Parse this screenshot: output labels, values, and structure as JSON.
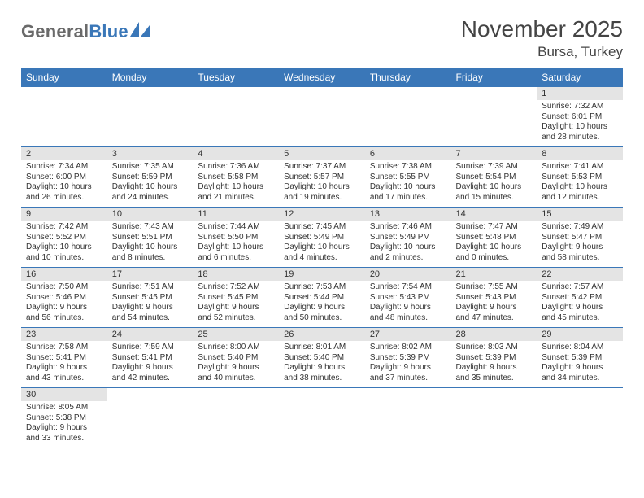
{
  "logo": {
    "general": "General",
    "blue": "Blue"
  },
  "title": "November 2025",
  "location": "Bursa, Turkey",
  "colors": {
    "header_bg": "#3a77b8",
    "header_fg": "#ffffff",
    "daynum_bg": "#e4e4e4",
    "border": "#3a77b8",
    "text": "#333333",
    "logo_general": "#6a6a6a",
    "logo_blue": "#3a77b8"
  },
  "weekdays": [
    "Sunday",
    "Monday",
    "Tuesday",
    "Wednesday",
    "Thursday",
    "Friday",
    "Saturday"
  ],
  "weeks": [
    [
      null,
      null,
      null,
      null,
      null,
      null,
      {
        "n": "1",
        "sr": "Sunrise: 7:32 AM",
        "ss": "Sunset: 6:01 PM",
        "dl1": "Daylight: 10 hours",
        "dl2": "and 28 minutes."
      }
    ],
    [
      {
        "n": "2",
        "sr": "Sunrise: 7:34 AM",
        "ss": "Sunset: 6:00 PM",
        "dl1": "Daylight: 10 hours",
        "dl2": "and 26 minutes."
      },
      {
        "n": "3",
        "sr": "Sunrise: 7:35 AM",
        "ss": "Sunset: 5:59 PM",
        "dl1": "Daylight: 10 hours",
        "dl2": "and 24 minutes."
      },
      {
        "n": "4",
        "sr": "Sunrise: 7:36 AM",
        "ss": "Sunset: 5:58 PM",
        "dl1": "Daylight: 10 hours",
        "dl2": "and 21 minutes."
      },
      {
        "n": "5",
        "sr": "Sunrise: 7:37 AM",
        "ss": "Sunset: 5:57 PM",
        "dl1": "Daylight: 10 hours",
        "dl2": "and 19 minutes."
      },
      {
        "n": "6",
        "sr": "Sunrise: 7:38 AM",
        "ss": "Sunset: 5:55 PM",
        "dl1": "Daylight: 10 hours",
        "dl2": "and 17 minutes."
      },
      {
        "n": "7",
        "sr": "Sunrise: 7:39 AM",
        "ss": "Sunset: 5:54 PM",
        "dl1": "Daylight: 10 hours",
        "dl2": "and 15 minutes."
      },
      {
        "n": "8",
        "sr": "Sunrise: 7:41 AM",
        "ss": "Sunset: 5:53 PM",
        "dl1": "Daylight: 10 hours",
        "dl2": "and 12 minutes."
      }
    ],
    [
      {
        "n": "9",
        "sr": "Sunrise: 7:42 AM",
        "ss": "Sunset: 5:52 PM",
        "dl1": "Daylight: 10 hours",
        "dl2": "and 10 minutes."
      },
      {
        "n": "10",
        "sr": "Sunrise: 7:43 AM",
        "ss": "Sunset: 5:51 PM",
        "dl1": "Daylight: 10 hours",
        "dl2": "and 8 minutes."
      },
      {
        "n": "11",
        "sr": "Sunrise: 7:44 AM",
        "ss": "Sunset: 5:50 PM",
        "dl1": "Daylight: 10 hours",
        "dl2": "and 6 minutes."
      },
      {
        "n": "12",
        "sr": "Sunrise: 7:45 AM",
        "ss": "Sunset: 5:49 PM",
        "dl1": "Daylight: 10 hours",
        "dl2": "and 4 minutes."
      },
      {
        "n": "13",
        "sr": "Sunrise: 7:46 AM",
        "ss": "Sunset: 5:49 PM",
        "dl1": "Daylight: 10 hours",
        "dl2": "and 2 minutes."
      },
      {
        "n": "14",
        "sr": "Sunrise: 7:47 AM",
        "ss": "Sunset: 5:48 PM",
        "dl1": "Daylight: 10 hours",
        "dl2": "and 0 minutes."
      },
      {
        "n": "15",
        "sr": "Sunrise: 7:49 AM",
        "ss": "Sunset: 5:47 PM",
        "dl1": "Daylight: 9 hours",
        "dl2": "and 58 minutes."
      }
    ],
    [
      {
        "n": "16",
        "sr": "Sunrise: 7:50 AM",
        "ss": "Sunset: 5:46 PM",
        "dl1": "Daylight: 9 hours",
        "dl2": "and 56 minutes."
      },
      {
        "n": "17",
        "sr": "Sunrise: 7:51 AM",
        "ss": "Sunset: 5:45 PM",
        "dl1": "Daylight: 9 hours",
        "dl2": "and 54 minutes."
      },
      {
        "n": "18",
        "sr": "Sunrise: 7:52 AM",
        "ss": "Sunset: 5:45 PM",
        "dl1": "Daylight: 9 hours",
        "dl2": "and 52 minutes."
      },
      {
        "n": "19",
        "sr": "Sunrise: 7:53 AM",
        "ss": "Sunset: 5:44 PM",
        "dl1": "Daylight: 9 hours",
        "dl2": "and 50 minutes."
      },
      {
        "n": "20",
        "sr": "Sunrise: 7:54 AM",
        "ss": "Sunset: 5:43 PM",
        "dl1": "Daylight: 9 hours",
        "dl2": "and 48 minutes."
      },
      {
        "n": "21",
        "sr": "Sunrise: 7:55 AM",
        "ss": "Sunset: 5:43 PM",
        "dl1": "Daylight: 9 hours",
        "dl2": "and 47 minutes."
      },
      {
        "n": "22",
        "sr": "Sunrise: 7:57 AM",
        "ss": "Sunset: 5:42 PM",
        "dl1": "Daylight: 9 hours",
        "dl2": "and 45 minutes."
      }
    ],
    [
      {
        "n": "23",
        "sr": "Sunrise: 7:58 AM",
        "ss": "Sunset: 5:41 PM",
        "dl1": "Daylight: 9 hours",
        "dl2": "and 43 minutes."
      },
      {
        "n": "24",
        "sr": "Sunrise: 7:59 AM",
        "ss": "Sunset: 5:41 PM",
        "dl1": "Daylight: 9 hours",
        "dl2": "and 42 minutes."
      },
      {
        "n": "25",
        "sr": "Sunrise: 8:00 AM",
        "ss": "Sunset: 5:40 PM",
        "dl1": "Daylight: 9 hours",
        "dl2": "and 40 minutes."
      },
      {
        "n": "26",
        "sr": "Sunrise: 8:01 AM",
        "ss": "Sunset: 5:40 PM",
        "dl1": "Daylight: 9 hours",
        "dl2": "and 38 minutes."
      },
      {
        "n": "27",
        "sr": "Sunrise: 8:02 AM",
        "ss": "Sunset: 5:39 PM",
        "dl1": "Daylight: 9 hours",
        "dl2": "and 37 minutes."
      },
      {
        "n": "28",
        "sr": "Sunrise: 8:03 AM",
        "ss": "Sunset: 5:39 PM",
        "dl1": "Daylight: 9 hours",
        "dl2": "and 35 minutes."
      },
      {
        "n": "29",
        "sr": "Sunrise: 8:04 AM",
        "ss": "Sunset: 5:39 PM",
        "dl1": "Daylight: 9 hours",
        "dl2": "and 34 minutes."
      }
    ],
    [
      {
        "n": "30",
        "sr": "Sunrise: 8:05 AM",
        "ss": "Sunset: 5:38 PM",
        "dl1": "Daylight: 9 hours",
        "dl2": "and 33 minutes."
      },
      null,
      null,
      null,
      null,
      null,
      null
    ]
  ]
}
